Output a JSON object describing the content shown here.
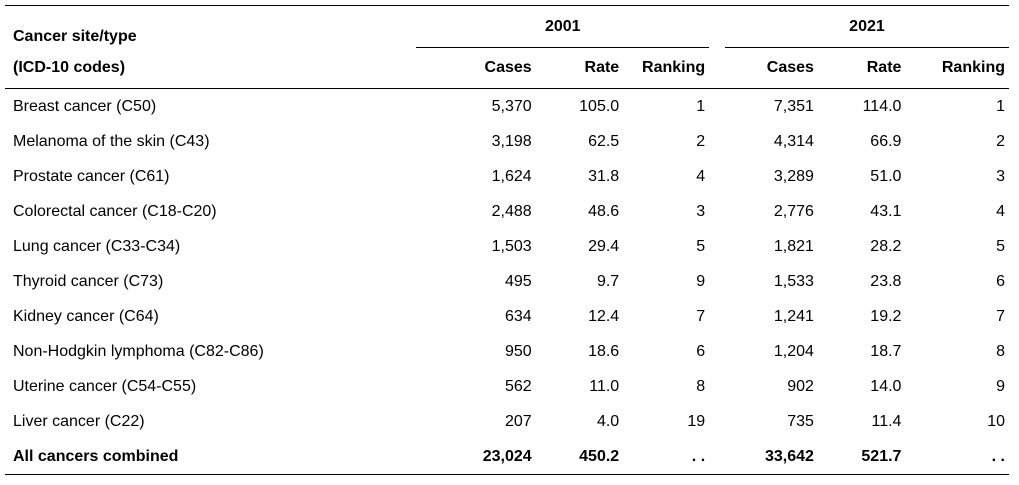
{
  "table": {
    "header": {
      "site_line1": "Cancer site/type",
      "site_line2": "(ICD-10 codes)",
      "year1": "2001",
      "year2": "2021",
      "cases": "Cases",
      "rate": "Rate",
      "ranking": "Ranking"
    },
    "rows": [
      {
        "site": "Breast cancer (C50)",
        "c1": "5,370",
        "r1": "105.0",
        "k1": "1",
        "c2": "7,351",
        "r2": "114.0",
        "k2": "1"
      },
      {
        "site": "Melanoma of the skin (C43)",
        "c1": "3,198",
        "r1": "62.5",
        "k1": "2",
        "c2": "4,314",
        "r2": "66.9",
        "k2": "2"
      },
      {
        "site": "Prostate cancer (C61)",
        "c1": "1,624",
        "r1": "31.8",
        "k1": "4",
        "c2": "3,289",
        "r2": "51.0",
        "k2": "3"
      },
      {
        "site": "Colorectal cancer (C18-C20)",
        "c1": "2,488",
        "r1": "48.6",
        "k1": "3",
        "c2": "2,776",
        "r2": "43.1",
        "k2": "4"
      },
      {
        "site": "Lung cancer (C33-C34)",
        "c1": "1,503",
        "r1": "29.4",
        "k1": "5",
        "c2": "1,821",
        "r2": "28.2",
        "k2": "5"
      },
      {
        "site": "Thyroid cancer (C73)",
        "c1": "495",
        "r1": "9.7",
        "k1": "9",
        "c2": "1,533",
        "r2": "23.8",
        "k2": "6"
      },
      {
        "site": "Kidney cancer (C64)",
        "c1": "634",
        "r1": "12.4",
        "k1": "7",
        "c2": "1,241",
        "r2": "19.2",
        "k2": "7"
      },
      {
        "site": "Non-Hodgkin lymphoma (C82-C86)",
        "c1": "950",
        "r1": "18.6",
        "k1": "6",
        "c2": "1,204",
        "r2": "18.7",
        "k2": "8"
      },
      {
        "site": "Uterine cancer (C54-C55)",
        "c1": "562",
        "r1": "11.0",
        "k1": "8",
        "c2": "902",
        "r2": "14.0",
        "k2": "9"
      },
      {
        "site": "Liver cancer (C22)",
        "c1": "207",
        "r1": "4.0",
        "k1": "19",
        "c2": "735",
        "r2": "11.4",
        "k2": "10"
      }
    ],
    "total": {
      "site": "All cancers combined",
      "c1": "23,024",
      "r1": "450.2",
      "k1": ". .",
      "c2": "33,642",
      "r2": "521.7",
      "k2": ". ."
    }
  }
}
